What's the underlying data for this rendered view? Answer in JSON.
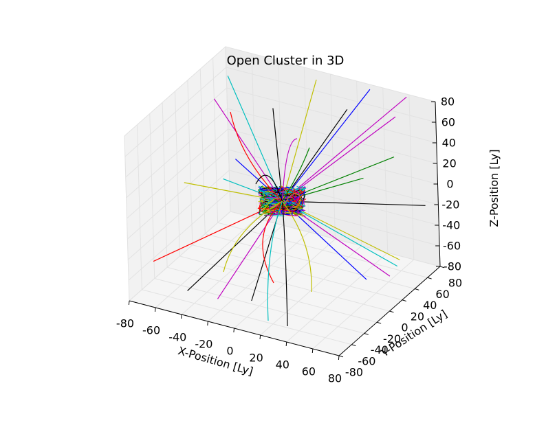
{
  "chart_data": {
    "type": "line",
    "projection": "3d",
    "title": "Open Cluster in 3D",
    "xlabel": "X-Position [Ly]",
    "ylabel": "Y-Position [Ly]",
    "zlabel": "Z-Position [Ly]",
    "xlim": [
      -80,
      80
    ],
    "ylim": [
      -80,
      80
    ],
    "zlim": [
      -80,
      80
    ],
    "x_ticks": [
      "-80",
      "-60",
      "-40",
      "-20",
      "0",
      "20",
      "40",
      "60",
      "80"
    ],
    "y_ticks": [
      "-80",
      "-60",
      "-40",
      "-20",
      "0",
      "20",
      "40",
      "60",
      "80"
    ],
    "z_ticks": [
      "-80",
      "-60",
      "-40",
      "-20",
      "0",
      "20",
      "40",
      "60",
      "80"
    ],
    "grid": true,
    "legend": "none",
    "colors": [
      "#0000ff",
      "#008000",
      "#ff0000",
      "#00bfbf",
      "#bf00bf",
      "#bfbf00",
      "#000000"
    ],
    "series": [
      {
        "color": "#ff0000",
        "x": [
          0,
          -78
        ],
        "y": [
          0,
          -45
        ],
        "z": [
          0,
          -60
        ]
      },
      {
        "color": "#000000",
        "x": [
          0,
          -44
        ],
        "y": [
          0,
          -62
        ],
        "z": [
          0,
          -68
        ]
      },
      {
        "color": "#bf00bf",
        "x": [
          0,
          -18
        ],
        "y": [
          0,
          -68
        ],
        "z": [
          0,
          -64
        ]
      },
      {
        "color": "#000000",
        "x": [
          0,
          6
        ],
        "y": [
          0,
          -64
        ],
        "z": [
          0,
          -60
        ]
      },
      {
        "color": "#0000ff",
        "x": [
          0,
          68
        ],
        "y": [
          0,
          -10
        ],
        "z": [
          0,
          -48
        ]
      },
      {
        "color": "#bf00bf",
        "x": [
          0,
          78
        ],
        "y": [
          0,
          6
        ],
        "z": [
          0,
          -50
        ]
      },
      {
        "color": "#00bfbf",
        "x": [
          0,
          80
        ],
        "y": [
          0,
          14
        ],
        "z": [
          0,
          -44
        ]
      },
      {
        "color": "#bfbf00",
        "x": [
          0,
          80
        ],
        "y": [
          0,
          18
        ],
        "z": [
          0,
          -40
        ]
      },
      {
        "color": "#000000",
        "x": [
          0,
          80
        ],
        "y": [
          0,
          60
        ],
        "z": [
          0,
          -10
        ]
      },
      {
        "color": "#00bfbf",
        "x": [
          0,
          -72
        ],
        "y": [
          0,
          66
        ],
        "z": [
          0,
          62
        ]
      },
      {
        "color": "#bf00bf",
        "x": [
          0,
          -76
        ],
        "y": [
          0,
          52
        ],
        "z": [
          0,
          46
        ]
      },
      {
        "color": "#bfbf00",
        "x": [
          0,
          -80
        ],
        "y": [
          0,
          10
        ],
        "z": [
          0,
          -14
        ]
      },
      {
        "color": "#00bfbf",
        "x": [
          0,
          -54
        ],
        "y": [
          0,
          18
        ],
        "z": [
          0,
          -6
        ]
      },
      {
        "color": "#0000ff",
        "x": [
          0,
          -50
        ],
        "y": [
          0,
          30
        ],
        "z": [
          0,
          8
        ]
      },
      {
        "color": "#bf00bf",
        "x": [
          0,
          60
        ],
        "y": [
          0,
          76
        ],
        "z": [
          0,
          80
        ]
      },
      {
        "color": "#bf00bf",
        "x": [
          0,
          54
        ],
        "y": [
          0,
          70
        ],
        "z": [
          0,
          62
        ]
      },
      {
        "color": "#008000",
        "x": [
          0,
          56
        ],
        "y": [
          0,
          62
        ],
        "z": [
          0,
          28
        ]
      },
      {
        "color": "#008000",
        "x": [
          0,
          38
        ],
        "y": [
          0,
          50
        ],
        "z": [
          0,
          8
        ]
      },
      {
        "color": "#0000ff",
        "x": [
          0,
          32
        ],
        "y": [
          0,
          76
        ],
        "z": [
          0,
          78
        ]
      },
      {
        "color": "#000000",
        "x": [
          0,
          22
        ],
        "y": [
          0,
          60
        ],
        "z": [
          0,
          64
        ]
      },
      {
        "color": "#000000",
        "x": [
          0,
          -28
        ],
        "y": [
          0,
          46
        ],
        "z": [
          0,
          56
        ]
      },
      {
        "color": "#bfbf00",
        "x": [
          0,
          -6
        ],
        "y": [
          0,
          70
        ],
        "z": [
          0,
          78
        ]
      }
    ]
  }
}
